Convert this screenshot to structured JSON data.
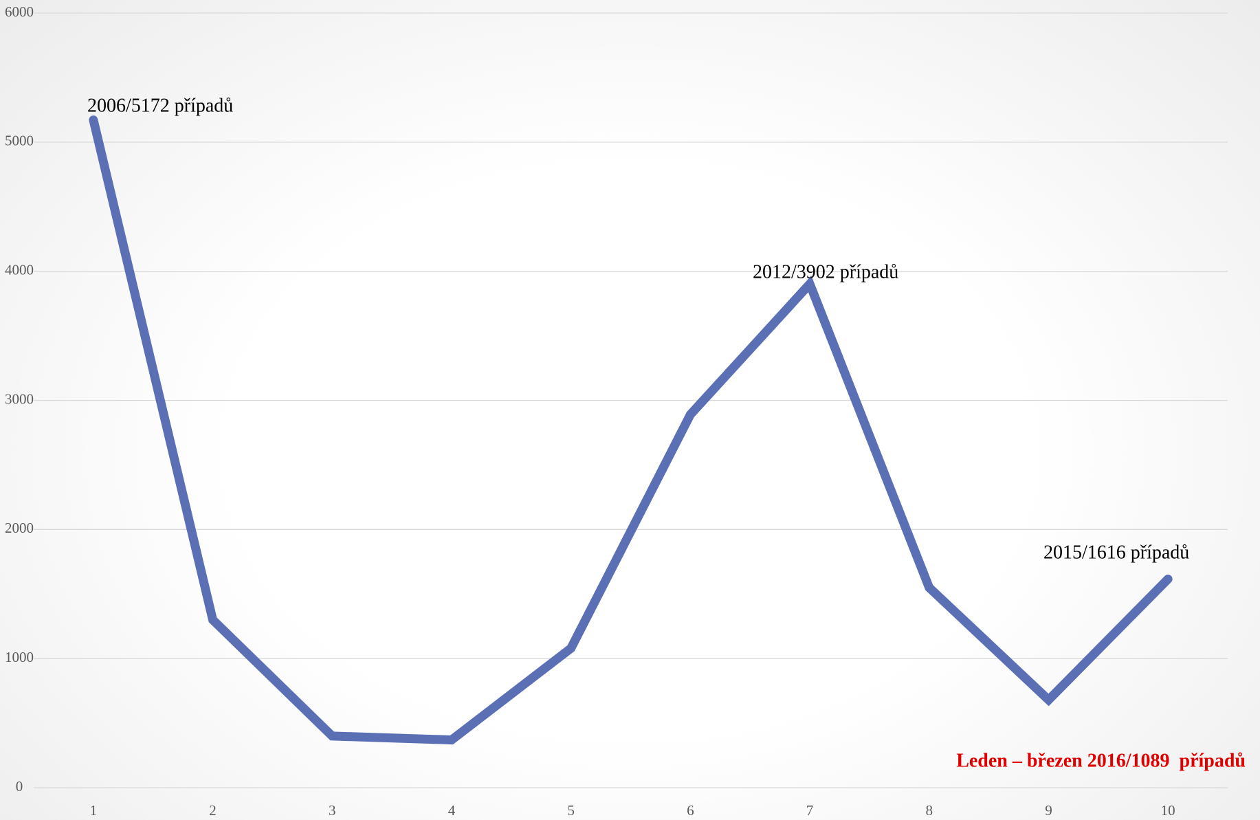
{
  "chart_data": {
    "type": "line",
    "categories": [
      "1",
      "2",
      "3",
      "4",
      "5",
      "6",
      "7",
      "8",
      "9",
      "10"
    ],
    "series": [
      {
        "color": "#5b6fb4",
        "values": [
          5172,
          1300,
          400,
          370,
          1080,
          2890,
          3902,
          1550,
          680,
          1616
        ]
      }
    ],
    "ylim": [
      0,
      6000
    ],
    "yticks": [
      0,
      1000,
      2000,
      3000,
      4000,
      5000,
      6000
    ],
    "grid": true,
    "annotations": [
      "2006/5172 případů",
      "2012/3902 případů",
      "2015/1616 případů",
      "Leden – březen 2016/1089  případů"
    ]
  }
}
